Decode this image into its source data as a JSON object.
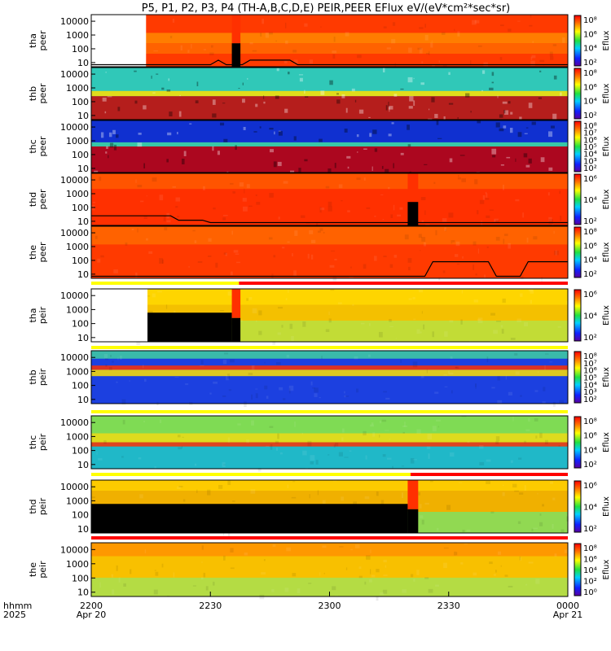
{
  "title": "P5, P1, P2, P3, P4 (TH-A,B,C,D,E) PEIR,PEER EFlux eV/(eV*cm²*sec*sr)",
  "chart_data": {
    "type": "heatmap",
    "title": "P5, P1, P2, P3, P4 (TH-A,B,C,D,E) PEIR,PEER EFlux eV/(eV*cm²*sec*sr)",
    "xlabel_row1": "hhmm",
    "xlabel_row2": "2025",
    "x_ticks": [
      {
        "hhmm": "2200",
        "date": "Apr 20"
      },
      {
        "hhmm": "2230",
        "date": ""
      },
      {
        "hhmm": "2300",
        "date": ""
      },
      {
        "hhmm": "2330",
        "date": ""
      },
      {
        "hhmm": "0000",
        "date": "Apr 21"
      }
    ],
    "y_scale": "log",
    "colorbar_label": "Eflux",
    "panels": [
      {
        "probe": "tha",
        "species": "peer",
        "label": "tha\npeer",
        "ylim": [
          5,
          30000
        ],
        "y_ticks": [
          "10000",
          "1000",
          "100",
          "10"
        ],
        "cbar_ticks": [
          "10⁸",
          "10⁶",
          "10⁴",
          "10²"
        ],
        "base_color": "#ff3a00",
        "bands": [
          [
            0.35,
            0.55,
            "#ff8a00"
          ],
          [
            0.55,
            0.75,
            "#ff6a00"
          ]
        ],
        "blank_until": 0.115,
        "gap": [
          0.295,
          0.313
        ],
        "has_curve": true
      },
      {
        "probe": "thb",
        "species": "peer",
        "label": "thb\npeer",
        "ylim": [
          5,
          30000
        ],
        "y_ticks": [
          "10000",
          "1000",
          "100",
          "10"
        ],
        "cbar_ticks": [
          "10⁸",
          "10⁶",
          "10⁴",
          "10²"
        ],
        "base_color": "#30c8b8",
        "bands": [
          [
            0.45,
            0.55,
            "#ffe000"
          ],
          [
            0.55,
            1.0,
            "#cc0000"
          ]
        ],
        "blank_until": 0,
        "gap": null,
        "has_curve": false
      },
      {
        "probe": "thc",
        "species": "peer",
        "label": "thc\npeer",
        "ylim": [
          5,
          30000
        ],
        "y_ticks": [
          "10000",
          "1000",
          "100",
          "10"
        ],
        "cbar_ticks": [
          "10⁸",
          "10⁷",
          "10⁶",
          "10⁵",
          "10⁴",
          "10³",
          "10²"
        ],
        "base_color": "#1030d0",
        "bands": [
          [
            0.42,
            0.5,
            "#40e0a0"
          ],
          [
            0.5,
            1.0,
            "#c80000"
          ]
        ],
        "blank_until": 0,
        "gap": null,
        "has_curve": false
      },
      {
        "probe": "thd",
        "species": "peer",
        "label": "thd\npeer",
        "ylim": [
          5,
          30000
        ],
        "y_ticks": [
          "10000",
          "1000",
          "100",
          "10"
        ],
        "cbar_ticks": [
          "10⁶",
          "10⁴",
          "10²"
        ],
        "base_color": "#ff3000",
        "bands": [
          [
            0.0,
            0.3,
            "#ff5a00"
          ]
        ],
        "blank_until": 0,
        "gap": [
          0.664,
          0.686
        ],
        "has_curve": true
      },
      {
        "probe": "the",
        "species": "peer",
        "label": "the\npeer",
        "ylim": [
          5,
          30000
        ],
        "y_ticks": [
          "10000",
          "1000",
          "100",
          "10"
        ],
        "cbar_ticks": [
          "10⁸",
          "10⁶",
          "10⁴",
          "10²"
        ],
        "base_color": "#ff3a00",
        "bands": [
          [
            0.0,
            0.35,
            "#ff6a00"
          ]
        ],
        "blank_until": 0,
        "gap": null,
        "has_curve": true
      },
      {
        "probe": "tha",
        "species": "peir",
        "label": "tha\npeir",
        "ylim": [
          5,
          30000
        ],
        "y_ticks": [
          "10000",
          "1000",
          "100",
          "10"
        ],
        "cbar_ticks": [
          "10⁶",
          "10⁴",
          "10²"
        ],
        "base_color": "#f4c000",
        "bands": [
          [
            0.0,
            0.3,
            "#ffd800"
          ],
          [
            0.6,
            1.0,
            "#b8e040"
          ]
        ],
        "blank_until": 0.118,
        "gap": [
          0.295,
          0.313
        ],
        "black_low_until": 0.295
      },
      {
        "probe": "thb",
        "species": "peir",
        "label": "thb\npeir",
        "ylim": [
          5,
          30000
        ],
        "y_ticks": [
          "10000",
          "1000",
          "100",
          "10"
        ],
        "cbar_ticks": [
          "10⁸",
          "10⁷",
          "10⁶",
          "10⁵",
          "10⁴",
          "10³",
          "10²"
        ],
        "base_color": "#1c40e0",
        "bands": [
          [
            0.0,
            0.15,
            "#40d0a0"
          ],
          [
            0.28,
            0.36,
            "#ff3000"
          ],
          [
            0.36,
            0.48,
            "#ffe000"
          ]
        ],
        "blank_until": 0,
        "gap": null
      },
      {
        "probe": "thc",
        "species": "peir",
        "label": "thc\npeir",
        "ylim": [
          5,
          30000
        ],
        "y_ticks": [
          "10000",
          "1000",
          "100",
          "10"
        ],
        "cbar_ticks": [
          "10⁸",
          "10⁶",
          "10⁴",
          "10²"
        ],
        "base_color": "#20b8c8",
        "bands": [
          [
            0.0,
            0.33,
            "#90e040"
          ],
          [
            0.33,
            0.5,
            "#ffe000"
          ],
          [
            0.5,
            0.58,
            "#ff3000"
          ]
        ],
        "blank_until": 0,
        "gap": null
      },
      {
        "probe": "thd",
        "species": "peir",
        "label": "thd\npeir",
        "ylim": [
          5,
          30000
        ],
        "y_ticks": [
          "10000",
          "1000",
          "100",
          "10"
        ],
        "cbar_ticks": [
          "10⁶",
          "10⁴",
          "10²"
        ],
        "base_color": "#f0b000",
        "bands": [
          [
            0.0,
            0.2,
            "#ffd000"
          ],
          [
            0.6,
            1.0,
            "#80e060"
          ]
        ],
        "blank_until": 0,
        "gap": [
          0.664,
          0.686
        ],
        "black_low_until": 0.664
      },
      {
        "probe": "the",
        "species": "peir",
        "label": "the\npeir",
        "ylim": [
          5,
          30000
        ],
        "y_ticks": [
          "10000",
          "1000",
          "100",
          "10"
        ],
        "cbar_ticks": [
          "10⁸",
          "10⁶",
          "10⁴",
          "10²",
          "10⁰"
        ],
        "base_color": "#f8c000",
        "bands": [
          [
            0.0,
            0.25,
            "#ff9000"
          ],
          [
            0.65,
            1.0,
            "#a8e050"
          ]
        ],
        "blank_until": 0,
        "gap": null
      }
    ],
    "flag_bars": [
      {
        "after_panel": 4,
        "segments": [
          [
            0.0,
            0.31,
            "#ffff00"
          ],
          [
            0.31,
            1.0,
            "#ff0000"
          ]
        ]
      },
      {
        "after_panel": 5,
        "segments": [
          [
            0.0,
            1.0,
            "#ffff00"
          ]
        ]
      },
      {
        "after_panel": 6,
        "segments": [
          [
            0.0,
            1.0,
            "#ffff00"
          ]
        ]
      },
      {
        "after_panel": 7,
        "segments": [
          [
            0.0,
            0.67,
            "#ffff00"
          ],
          [
            0.67,
            1.0,
            "#ff0000"
          ]
        ]
      },
      {
        "after_panel": 8,
        "segments": [
          [
            0.0,
            1.0,
            "#ff0000"
          ]
        ]
      }
    ]
  }
}
